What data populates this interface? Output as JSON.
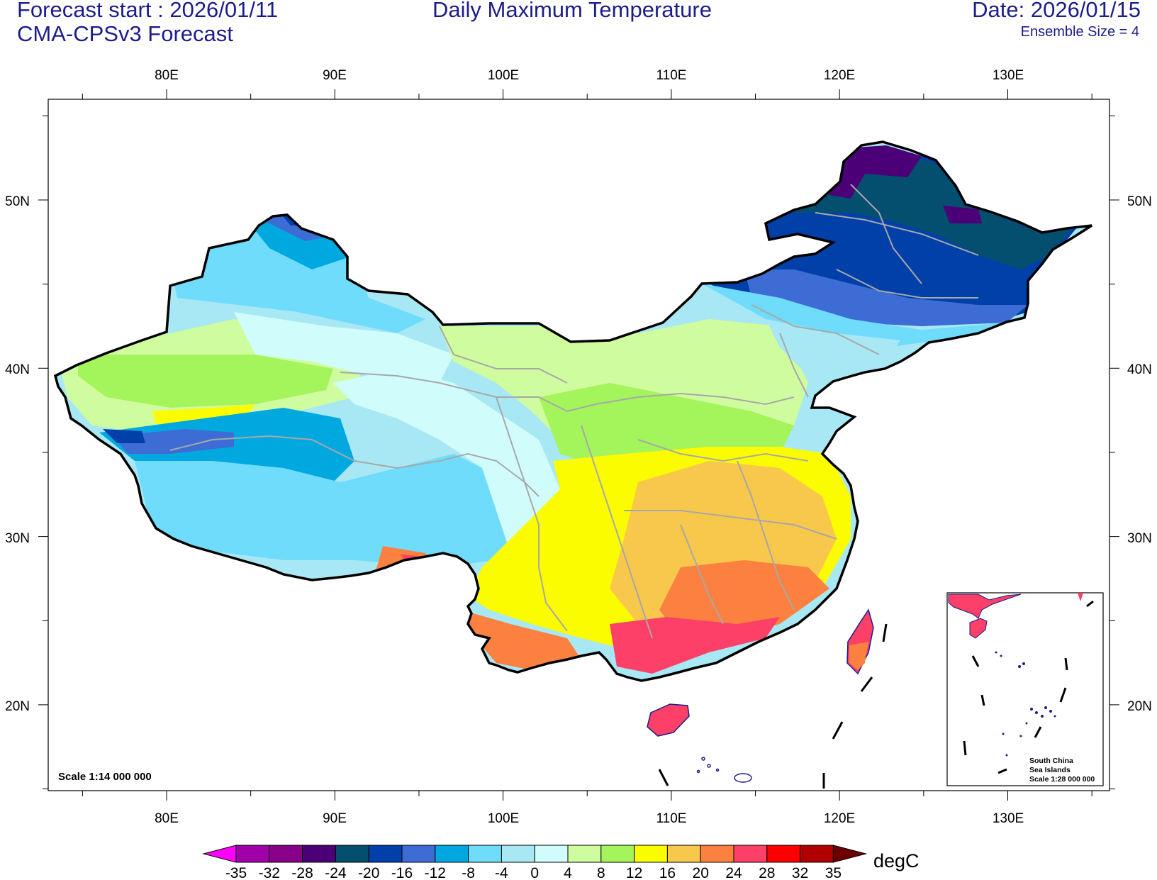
{
  "header": {
    "forecast_start": "Forecast start : 2026/01/11",
    "model": "CMA-CPSv3 Forecast",
    "title": "Daily Maximum Temperature",
    "date": "Date: 2026/01/15",
    "ensemble": "Ensemble Size = 4"
  },
  "map": {
    "lon_labels": [
      "80E",
      "90E",
      "100E",
      "110E",
      "120E",
      "130E"
    ],
    "lat_labels": [
      "50N",
      "40N",
      "30N",
      "20N"
    ],
    "scale_label": "Scale 1:14 000 000",
    "inset": {
      "title_line1": "South China",
      "title_line2": "Sea Islands",
      "scale": "Scale 1:28 000 000"
    }
  },
  "colorbar": {
    "unit": "degC",
    "ticks": [
      "-35",
      "-32",
      "-28",
      "-24",
      "-20",
      "-16",
      "-12",
      "-8",
      "-4",
      "0",
      "4",
      "8",
      "12",
      "16",
      "20",
      "24",
      "28",
      "32",
      "35"
    ],
    "colors": [
      "#ff00ff",
      "#a000a8",
      "#880088",
      "#4c0078",
      "#044e70",
      "#0040a8",
      "#3c6cd4",
      "#00a8e0",
      "#70dcfc",
      "#a8e8f4",
      "#d0fcfc",
      "#d0fca0",
      "#a4f45c",
      "#fcfc00",
      "#f8c84c",
      "#fc8040",
      "#fc4068",
      "#fc0000",
      "#b00000",
      "#6c0000"
    ]
  },
  "chart_data": {
    "type": "heatmap",
    "title": "Daily Maximum Temperature",
    "region": "China",
    "lon_range": [
      73.5,
      135.5
    ],
    "lat_range": [
      15,
      55
    ],
    "unit": "degC",
    "levels": [
      -35,
      -32,
      -28,
      -24,
      -20,
      -16,
      -12,
      -8,
      -4,
      0,
      4,
      8,
      12,
      16,
      20,
      24,
      28,
      32,
      35
    ]
  }
}
